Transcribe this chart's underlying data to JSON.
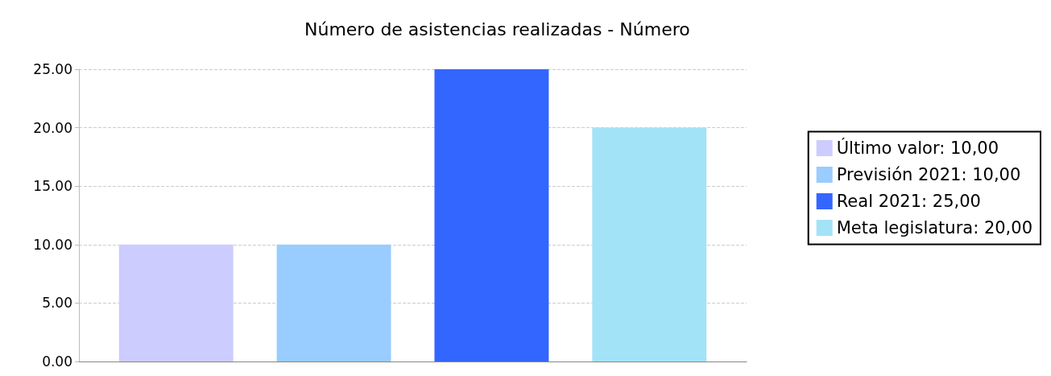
{
  "chart_data": {
    "type": "bar",
    "title": "Número de asistencias realizadas - Número",
    "categories": [
      null
    ],
    "series": [
      {
        "name": "Último valor: 10,00",
        "color": "#ccccff",
        "values": [
          10
        ]
      },
      {
        "name": "Previsión 2021: 10,00",
        "color": "#99ccff",
        "values": [
          10
        ]
      },
      {
        "name": "Real 2021: 25,00",
        "color": "#3366ff",
        "values": [
          25
        ]
      },
      {
        "name": "Meta legislatura: 20,00",
        "color": "#a3e3f7",
        "values": [
          20
        ]
      }
    ],
    "ylim": [
      0,
      25
    ],
    "yticks": [
      {
        "value": 0,
        "label": "0.00"
      },
      {
        "value": 5,
        "label": "5.00"
      },
      {
        "value": 10,
        "label": "10.00"
      },
      {
        "value": 15,
        "label": "15.00"
      },
      {
        "value": 20,
        "label": "20.00"
      },
      {
        "value": 25,
        "label": "25.00"
      }
    ],
    "grid": "y",
    "legend": "right"
  }
}
